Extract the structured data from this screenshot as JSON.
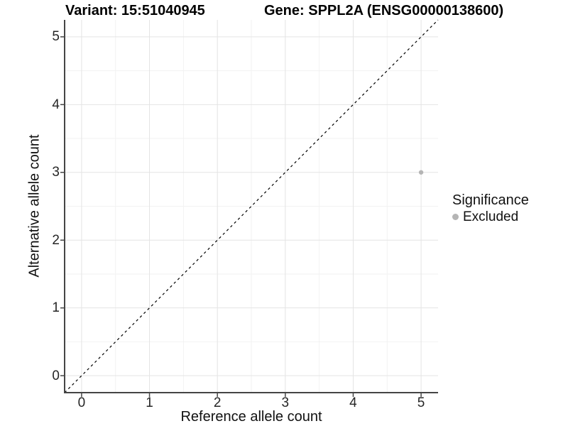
{
  "header": {
    "variant_title": "Variant: 15:51040945",
    "gene_title": "Gene: SPPL2A (ENSG00000138600)"
  },
  "chart_data": {
    "type": "scatter",
    "title_left": "Variant: 15:51040945",
    "title_right": "Gene: SPPL2A (ENSG00000138600)",
    "xlabel": "Reference allele count",
    "ylabel": "Alternative allele count",
    "xlim": [
      -0.25,
      5.25
    ],
    "ylim": [
      -0.25,
      5.25
    ],
    "xticks": [
      0,
      1,
      2,
      3,
      4,
      5
    ],
    "yticks": [
      0,
      1,
      2,
      3,
      4,
      5
    ],
    "minor_ticks": [
      0.5,
      1.5,
      2.5,
      3.5,
      4.5
    ],
    "grid": true,
    "points": [
      {
        "x": 5,
        "y": 3,
        "series": "Excluded"
      }
    ],
    "abline": {
      "slope": 1,
      "intercept": 0,
      "linetype": "dashed"
    },
    "legend": {
      "title": "Significance",
      "position": "right",
      "items": [
        {
          "label": "Excluded",
          "color": "#b5b5b5"
        }
      ]
    }
  },
  "style": {
    "point_color": "#b5b5b5",
    "grid_major_color": "#e4e4e4",
    "grid_minor_color": "#f2f2f2",
    "axis_line_color": "#454545",
    "tick_color": "#454545",
    "dashed_line_color": "#000000",
    "background_color": "#ffffff"
  }
}
